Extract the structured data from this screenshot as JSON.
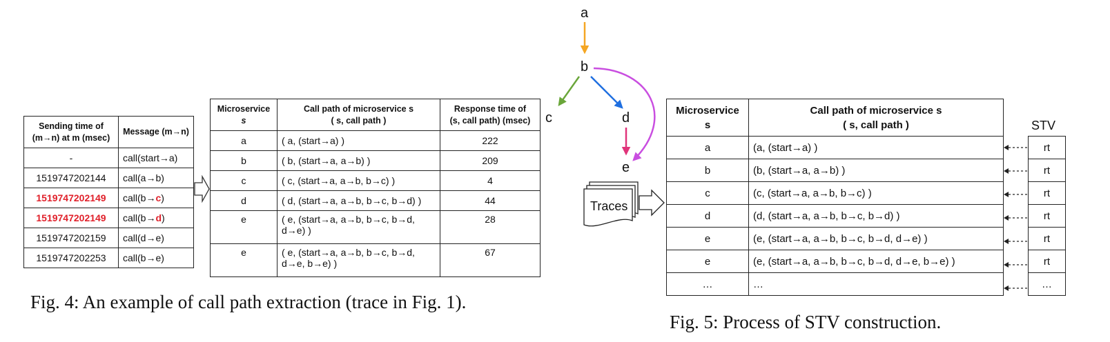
{
  "fig4": {
    "caption": "Fig. 4: An example of call path extraction (trace in Fig. 1).",
    "msg_table": {
      "headers": [
        "Sending time of (m→n) at m (msec)",
        "Message (m→n)"
      ],
      "rows": [
        {
          "time": "-",
          "before": "call(start→a)",
          "hl": "",
          "after": "",
          "red": false
        },
        {
          "time": "1519747202144",
          "before": "call(a→b)",
          "hl": "",
          "after": "",
          "red": false
        },
        {
          "time": "1519747202149",
          "before": "call(b→",
          "hl": "c",
          "after": ")",
          "red": true
        },
        {
          "time": "1519747202149",
          "before": "call(b→",
          "hl": "d",
          "after": ")",
          "red": true
        },
        {
          "time": "1519747202159",
          "before": "call(d→e)",
          "hl": "",
          "after": "",
          "red": false
        },
        {
          "time": "1519747202253",
          "before": "call(b→e)",
          "hl": "",
          "after": "",
          "red": false
        }
      ]
    },
    "path_table": {
      "h_ms": "Microservice",
      "h_ms_s": "s",
      "h_cp": "Call path of microservice s",
      "h_cp2": "( s, call path )",
      "h_rt": "Response time of",
      "h_rt2": "(s, call path) (msec)",
      "rows": [
        {
          "ms": "a",
          "path": "( a, (start→a) )",
          "rt": "222"
        },
        {
          "ms": "b",
          "path": "( b, (start→a, a→b) )",
          "rt": "209"
        },
        {
          "ms": "c",
          "path": "( c, (start→a, a→b, b→c) )",
          "rt": "4"
        },
        {
          "ms": "d",
          "path": "( d, (start→a, a→b, b→c, b→d) )",
          "rt": "44"
        },
        {
          "ms": "e",
          "path": "( e, (start→a, a→b, b→c, b→d, d→e) )",
          "rt": "28"
        },
        {
          "ms": "e",
          "path": "( e, (start→a, a→b, b→c, b→d, d→e, b→e) )",
          "rt": "67"
        }
      ]
    }
  },
  "graph": {
    "a": "a",
    "b": "b",
    "c": "c",
    "d": "d",
    "e": "e",
    "traces": "Traces",
    "colors": {
      "ab": "#f5a623",
      "bc": "#6aa63a",
      "bd": "#1f6fe0",
      "be": "#c94ee0",
      "de": "#e0347a"
    }
  },
  "fig5": {
    "caption": "Fig. 5: Process of STV construction.",
    "stv_label": "STV",
    "h_ms": "Microservice",
    "h_ms_s": "s",
    "h_cp": "Call path of microservice s",
    "h_cp2": "( s, call path )",
    "rows": [
      {
        "ms": "a",
        "path": "(a,  (start→a) )",
        "stv": "rt"
      },
      {
        "ms": "b",
        "path": "(b,  (start→a, a→b) )",
        "stv": "rt"
      },
      {
        "ms": "c",
        "path": "(c,  (start→a, a→b, b→c) )",
        "stv": "rt"
      },
      {
        "ms": "d",
        "path": "(d, (start→a, a→b, b→c, b→d) )",
        "stv": "rt"
      },
      {
        "ms": "e",
        "path": "(e,  (start→a, a→b, b→c, b→d, d→e) )",
        "stv": "rt"
      },
      {
        "ms": "e",
        "path": "(e,  (start→a, a→b, b→c, b→d, d→e, b→e) )",
        "stv": "rt"
      },
      {
        "ms": "…",
        "path": "…",
        "stv": "…"
      }
    ]
  },
  "bottom_text": "... ... ... ... ... ... ..."
}
